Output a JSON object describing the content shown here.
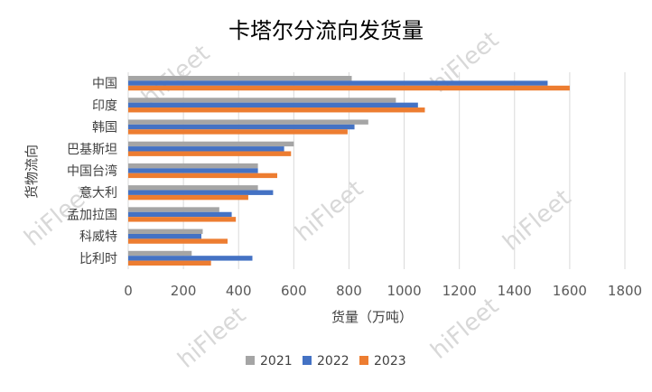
{
  "watermark": "hiFleet",
  "chart_data": {
    "type": "bar",
    "orientation": "horizontal",
    "title": "卡塔尔分流向发货量",
    "xlabel": "货量（万吨）",
    "ylabel": "货物流向",
    "xlim": [
      0,
      1800
    ],
    "xticks": [
      0,
      200,
      400,
      600,
      800,
      1000,
      1200,
      1400,
      1600,
      1800
    ],
    "grid": true,
    "legend_position": "bottom",
    "categories": [
      "中国",
      "印度",
      "韩国",
      "巴基斯坦",
      "中国台湾",
      "意大利",
      "孟加拉国",
      "科威特",
      "比利时"
    ],
    "series": [
      {
        "name": "2021",
        "color": "#a5a5a5",
        "values": [
          810,
          970,
          870,
          600,
          470,
          470,
          330,
          270,
          230
        ]
      },
      {
        "name": "2022",
        "color": "#4472c4",
        "values": [
          1520,
          1050,
          820,
          565,
          470,
          525,
          375,
          265,
          450
        ]
      },
      {
        "name": "2023",
        "color": "#ed7d31",
        "values": [
          1600,
          1075,
          795,
          590,
          540,
          435,
          390,
          360,
          300
        ]
      }
    ]
  }
}
